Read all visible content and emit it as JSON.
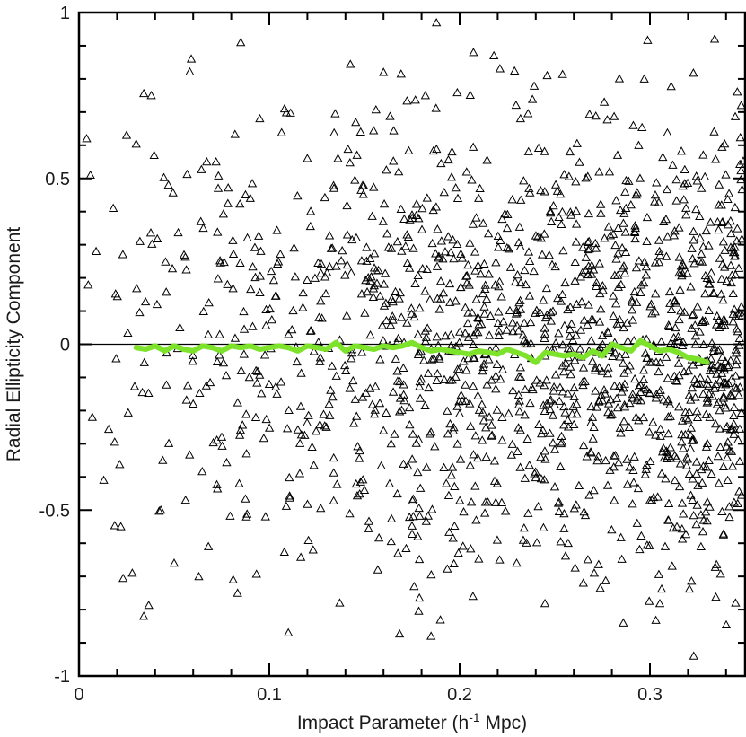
{
  "chart_data": {
    "type": "scatter",
    "title": "",
    "xlabel": "Impact Parameter (h",
    "xlabel_sup": "-1",
    "xlabel_tail": " Mpc)",
    "ylabel": "Radial Ellipticity Component",
    "xlim": [
      0,
      0.35
    ],
    "ylim": [
      -1,
      1
    ],
    "x_ticks": [
      {
        "value": 0,
        "label": "0"
      },
      {
        "value": 0.1,
        "label": "0.1"
      },
      {
        "value": 0.2,
        "label": "0.2"
      },
      {
        "value": 0.3,
        "label": "0.3"
      }
    ],
    "y_ticks": [
      {
        "value": -1,
        "label": "-1"
      },
      {
        "value": -0.5,
        "label": "-0.5"
      },
      {
        "value": 0,
        "label": "0"
      },
      {
        "value": 0.5,
        "label": "0.5"
      },
      {
        "value": 1,
        "label": "1"
      }
    ],
    "grid": false,
    "reference_line_y": 0,
    "colors": {
      "points": "#000000",
      "running_mean": "#7de32a",
      "axes": "#000000"
    },
    "point_count": 1600,
    "series": [
      {
        "kind": "running-mean",
        "x": [
          0.03,
          0.035,
          0.04,
          0.045,
          0.05,
          0.055,
          0.06,
          0.065,
          0.07,
          0.075,
          0.08,
          0.085,
          0.09,
          0.095,
          0.1,
          0.105,
          0.11,
          0.115,
          0.12,
          0.125,
          0.13,
          0.135,
          0.14,
          0.145,
          0.15,
          0.155,
          0.16,
          0.165,
          0.17,
          0.175,
          0.18,
          0.185,
          0.19,
          0.195,
          0.2,
          0.205,
          0.21,
          0.215,
          0.22,
          0.225,
          0.23,
          0.235,
          0.24,
          0.245,
          0.25,
          0.255,
          0.26,
          0.265,
          0.27,
          0.275,
          0.28,
          0.285,
          0.29,
          0.295,
          0.3,
          0.305,
          0.31,
          0.315,
          0.32,
          0.325,
          0.33
        ],
        "y": [
          -0.01,
          -0.015,
          -0.005,
          -0.02,
          -0.005,
          -0.015,
          -0.02,
          -0.005,
          -0.01,
          -0.02,
          -0.005,
          -0.01,
          -0.005,
          -0.015,
          -0.01,
          -0.005,
          -0.01,
          -0.02,
          -0.005,
          -0.01,
          -0.015,
          0.005,
          -0.02,
          -0.005,
          -0.01,
          -0.015,
          -0.005,
          -0.01,
          -0.005,
          0.005,
          -0.01,
          -0.02,
          -0.015,
          -0.02,
          -0.025,
          -0.03,
          -0.02,
          -0.025,
          -0.03,
          -0.015,
          -0.025,
          -0.035,
          -0.055,
          -0.025,
          -0.03,
          -0.035,
          -0.03,
          -0.04,
          -0.02,
          -0.035,
          0.0,
          -0.01,
          -0.02,
          0.01,
          -0.005,
          -0.02,
          -0.015,
          -0.025,
          -0.04,
          -0.045,
          -0.055
        ]
      },
      {
        "kind": "scatter-points",
        "x": [
          0.004,
          0.006,
          0.007,
          0.009,
          0.013,
          0.018,
          0.022,
          0.025,
          0.028,
          0.032,
          0.034,
          0.038,
          0.041,
          0.044,
          0.047,
          0.05,
          0.053,
          0.056,
          0.059,
          0.06,
          0.064,
          0.068,
          0.072,
          0.075,
          0.078,
          0.081,
          0.085,
          0.088,
          0.09,
          0.093,
          0.095,
          0.098,
          0.101,
          0.104,
          0.108,
          0.11,
          0.113,
          0.116,
          0.12,
          0.123,
          0.127,
          0.13,
          0.134,
          0.137,
          0.141,
          0.144,
          0.148,
          0.15,
          0.153,
          0.157,
          0.16,
          0.164,
          0.168,
          0.171,
          0.175,
          0.178,
          0.182,
          0.185,
          0.189,
          0.193,
          0.196,
          0.2,
          0.203,
          0.207,
          0.21,
          0.214,
          0.218,
          0.221,
          0.225,
          0.228,
          0.232,
          0.236,
          0.239,
          0.243,
          0.246,
          0.25,
          0.254,
          0.257,
          0.261,
          0.265,
          0.268,
          0.272,
          0.276,
          0.279,
          0.283,
          0.286,
          0.29,
          0.294,
          0.297,
          0.301,
          0.305,
          0.308,
          0.312,
          0.316,
          0.319,
          0.323,
          0.327,
          0.33,
          0.334,
          0.337,
          0.341,
          0.345,
          0.348
        ],
        "y": [
          0.62,
          0.51,
          -0.22,
          0.28,
          -0.41,
          0.41,
          -0.55,
          0.63,
          -0.69,
          0.31,
          -0.82,
          0.75,
          0.12,
          -0.35,
          0.48,
          -0.66,
          0.05,
          -0.47,
          0.86,
          -0.18,
          0.37,
          -0.61,
          0.55,
          -0.28,
          0.18,
          -0.71,
          0.91,
          -0.33,
          0.44,
          -0.08,
          0.68,
          -0.52,
          0.22,
          -0.15,
          0.71,
          -0.87,
          0.29,
          -0.39,
          0.56,
          -0.62,
          0.13,
          -0.25,
          0.47,
          -0.78,
          0.33,
          -0.11,
          0.64,
          -0.44,
          0.19,
          -0.68,
          0.82,
          -0.3,
          0.52,
          -0.17,
          0.39,
          -0.58,
          0.75,
          -0.88,
          0.26,
          -0.42,
          0.58,
          -0.21,
          0.11,
          -0.76,
          0.44,
          -0.34,
          0.87,
          -0.65,
          0.35,
          -0.14,
          0.68,
          -0.51,
          0.22,
          -0.27,
          0.81,
          -0.43,
          0.15,
          -0.6,
          0.49,
          -0.72,
          0.31,
          -0.19,
          0.73,
          -0.38,
          0.57,
          -0.84,
          0.42,
          -0.23,
          0.8,
          -0.47,
          0.28,
          -0.61,
          0.54,
          -0.36,
          0.39,
          -0.94,
          0.47,
          -0.12,
          0.92,
          -0.31,
          0.36,
          -0.78,
          0.72
        ]
      }
    ]
  }
}
